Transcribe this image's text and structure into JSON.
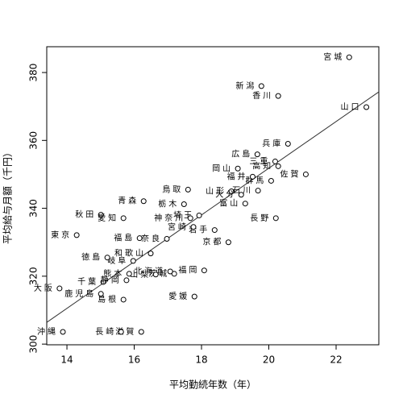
{
  "chart_data": {
    "type": "scatter",
    "xlabel": "平均勤続年数（年）",
    "ylabel": "平均給与月額（千円）",
    "xlim": [
      13.4,
      23.27
    ],
    "ylim": [
      299.8,
      387.6
    ],
    "xticks": [
      14,
      16,
      18,
      20,
      22
    ],
    "yticks": [
      300,
      320,
      340,
      360,
      380
    ],
    "color": "#000000",
    "labels": [
      "北海道",
      "青森",
      "岩手",
      "宮城",
      "秋田",
      "山形",
      "福島",
      "茨城",
      "栃木",
      "群馬",
      "埼玉",
      "千葉",
      "東京",
      "神奈川",
      "新潟",
      "富山",
      "石川",
      "福井",
      "山梨",
      "長野",
      "岐阜",
      "静岡",
      "愛知",
      "三重",
      "滋賀",
      "京都",
      "大阪",
      "兵庫",
      "奈良",
      "和歌山",
      "鳥取",
      "島根",
      "岡山",
      "広島",
      "山口",
      "徳島",
      "香川",
      "愛媛",
      "高知",
      "福岡",
      "佐賀",
      "長崎",
      "熊本",
      "大分",
      "宮崎",
      "鹿児島",
      "沖縄"
    ],
    "x": [
      17.07,
      16.28,
      18.39,
      22.39,
      15.01,
      18.89,
      16.16,
      17.19,
      17.48,
      20.07,
      17.93,
      15.08,
      14.29,
      17.67,
      19.78,
      19.3,
      19.68,
      19.52,
      16.64,
      20.21,
      15.97,
      15.77,
      15.68,
      20.19,
      16.21,
      18.8,
      13.78,
      20.57,
      16.97,
      16.49,
      17.6,
      15.68,
      19.08,
      19.66,
      22.9,
      15.2,
      20.28,
      17.79,
      20.28,
      18.08,
      21.1,
      15.61,
      15.85,
      19.18,
      17.76,
      15.01,
      13.88
    ],
    "values": [
      321.4,
      342.1,
      333.6,
      384.5,
      338.1,
      345.0,
      331.2,
      320.7,
      341.2,
      348.1,
      337.9,
      318.3,
      332.1,
      337.1,
      376.0,
      341.4,
      345.2,
      349.3,
      320.5,
      337.1,
      324.5,
      318.8,
      337.1,
      353.8,
      303.6,
      330.0,
      316.4,
      359.0,
      331.0,
      326.7,
      345.5,
      313.1,
      351.7,
      355.9,
      369.8,
      325.5,
      373.1,
      314.0,
      352.4,
      321.7,
      350.0,
      303.6,
      320.7,
      344.0,
      334.5,
      314.8,
      303.6
    ],
    "trend_line": {
      "x": [
        13.4,
        23.27
      ],
      "y": [
        306.4,
        374.3
      ]
    }
  }
}
